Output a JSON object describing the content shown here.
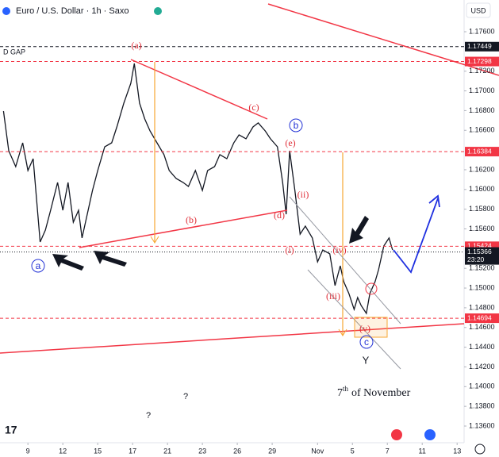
{
  "header": {
    "title": "Euro / U.S. Dollar · 1h · Saxo",
    "currency": "USD",
    "gap_label": "D GAP"
  },
  "chart_data": {
    "type": "line",
    "color": "#131722",
    "x": [
      -1.4,
      -1.1,
      -0.7,
      -0.3,
      0,
      0.3,
      0.7,
      1.0,
      1.3,
      1.7,
      2.0,
      2.3,
      2.6,
      2.9,
      3.1,
      3.4,
      3.7,
      4.0,
      4.4,
      4.8,
      5.1,
      5.5,
      5.9,
      6.1,
      6.4,
      6.7,
      7.0,
      7.4,
      7.8,
      8.1,
      8.5,
      8.9,
      9.2,
      9.6,
      10.0,
      10.3,
      10.7,
      11.0,
      11.4,
      11.8,
      12.1,
      12.5,
      12.9,
      13.2,
      13.6,
      13.9,
      14.3,
      14.6,
      14.8,
      15.0,
      15.3,
      15.6,
      15.9,
      16.3,
      16.6,
      16.9,
      17.3,
      17.6,
      17.9,
      18.1,
      18.4,
      18.7,
      18.9,
      19.1,
      19.4,
      19.6,
      19.9,
      20.1,
      20.4,
      20.7,
      20.9
    ],
    "series": [
      {
        "name": "EUR/USD",
        "color": "#131722",
        "values": [
          1.16795,
          1.16393,
          1.16232,
          1.16473,
          1.16192,
          1.16312,
          1.15467,
          1.15588,
          1.15789,
          1.16071,
          1.15789,
          1.16071,
          1.15668,
          1.15789,
          1.15508,
          1.15749,
          1.1599,
          1.16192,
          1.16433,
          1.16473,
          1.16634,
          1.16876,
          1.17077,
          1.17278,
          1.16876,
          1.16715,
          1.16594,
          1.16473,
          1.16353,
          1.16192,
          1.16111,
          1.16071,
          1.16031,
          1.16192,
          1.1599,
          1.16192,
          1.16232,
          1.16353,
          1.16312,
          1.16473,
          1.16554,
          1.16514,
          1.16634,
          1.16675,
          1.16594,
          1.16514,
          1.16433,
          1.16071,
          1.15749,
          1.16393,
          1.1599,
          1.15547,
          1.15628,
          1.15508,
          1.15266,
          1.15387,
          1.15347,
          1.15025,
          1.15226,
          1.15065,
          1.14944,
          1.14783,
          1.14904,
          1.14823,
          1.14743,
          1.14944,
          1.15065,
          1.15186,
          1.15427,
          1.15508,
          1.15387
        ]
      }
    ],
    "xlim": [
      -1.6,
      25
    ],
    "ylim": [
      1.13431,
      1.17922
    ],
    "xticks": [
      {
        "value": 0,
        "label": "9"
      },
      {
        "value": 2,
        "label": "12"
      },
      {
        "value": 4,
        "label": "15"
      },
      {
        "value": 6,
        "label": "17"
      },
      {
        "value": 8,
        "label": "21"
      },
      {
        "value": 10,
        "label": "23"
      },
      {
        "value": 12,
        "label": "26"
      },
      {
        "value": 14,
        "label": "29"
      },
      {
        "value": 16.6,
        "label": "Nov"
      },
      {
        "value": 18.6,
        "label": "5"
      },
      {
        "value": 20.6,
        "label": "7"
      },
      {
        "value": 22.6,
        "label": "11"
      },
      {
        "value": 24.6,
        "label": "13"
      }
    ],
    "yticks": [
      {
        "value": 1.176,
        "label": "1.17600"
      },
      {
        "value": 1.172,
        "label": "1.17200"
      },
      {
        "value": 1.17,
        "label": "1.17000"
      },
      {
        "value": 1.168,
        "label": "1.16800"
      },
      {
        "value": 1.166,
        "label": "1.16600"
      },
      {
        "value": 1.162,
        "label": "1.16200"
      },
      {
        "value": 1.16,
        "label": "1.16000"
      },
      {
        "value": 1.158,
        "label": "1.15800"
      },
      {
        "value": 1.156,
        "label": "1.15600"
      },
      {
        "value": 1.152,
        "label": "1.15200"
      },
      {
        "value": 1.15,
        "label": "1.15000"
      },
      {
        "value": 1.148,
        "label": "1.14800"
      },
      {
        "value": 1.146,
        "label": "1.14600"
      },
      {
        "value": 1.144,
        "label": "1.14400"
      },
      {
        "value": 1.142,
        "label": "1.14200"
      },
      {
        "value": 1.14,
        "label": "1.14000"
      },
      {
        "value": 1.138,
        "label": "1.13800"
      },
      {
        "value": 1.136,
        "label": "1.13600"
      }
    ],
    "price_levels": [
      {
        "value": 1.17449,
        "color": "#131722"
      },
      {
        "value": 1.17298,
        "color": "#f23645"
      },
      {
        "value": 1.16384,
        "color": "#f23645"
      },
      {
        "value": 1.15424,
        "color": "#f23645"
      },
      {
        "value": 1.15366,
        "color": "#131722",
        "time": "23:20"
      },
      {
        "value": 1.14694,
        "color": "#f23645"
      }
    ],
    "annotations": [
      "(a)",
      "(b)",
      "(c)",
      "(d)",
      "(e)",
      "a",
      "b",
      "c",
      "(i)",
      "(ii)",
      "(iii)",
      "(iv)",
      "(v)",
      "Y",
      "?",
      "?",
      "7",
      "th",
      "of November"
    ]
  }
}
